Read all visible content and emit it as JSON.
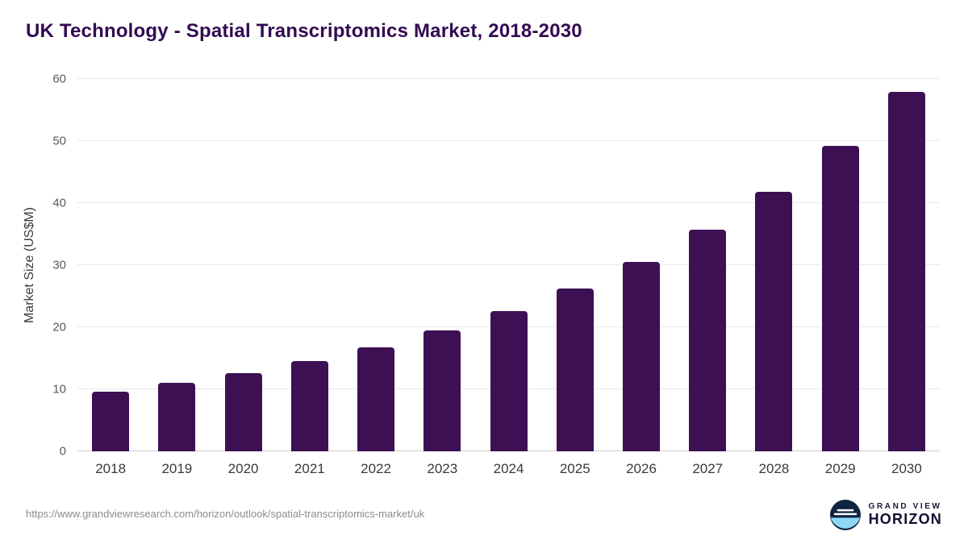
{
  "header": {
    "title": "UK Technology - Spatial Transcriptomics Market, 2018-2030"
  },
  "chart_data": {
    "type": "bar",
    "title": "UK Technology - Spatial Transcriptomics Market, 2018-2030",
    "categories": [
      "2018",
      "2019",
      "2020",
      "2021",
      "2022",
      "2023",
      "2024",
      "2025",
      "2026",
      "2027",
      "2028",
      "2029",
      "2030"
    ],
    "values": [
      9.6,
      11.0,
      12.6,
      14.6,
      16.8,
      19.5,
      22.6,
      26.2,
      30.5,
      35.7,
      41.8,
      49.2,
      57.9
    ],
    "xlabel": "",
    "ylabel": "Market Size (US$M)",
    "ylim": [
      0,
      60
    ],
    "yticks": [
      0,
      10,
      20,
      30,
      40,
      50,
      60
    ],
    "grid": "horizontal",
    "legend": "none",
    "bar_color": "#3d1054"
  },
  "footer": {
    "source_url": "https://www.grandviewresearch.com/horizon/outlook/spatial-transcriptomics-market/uk",
    "logo": {
      "line1": "GRAND VIEW",
      "line2": "HORIZON"
    }
  }
}
